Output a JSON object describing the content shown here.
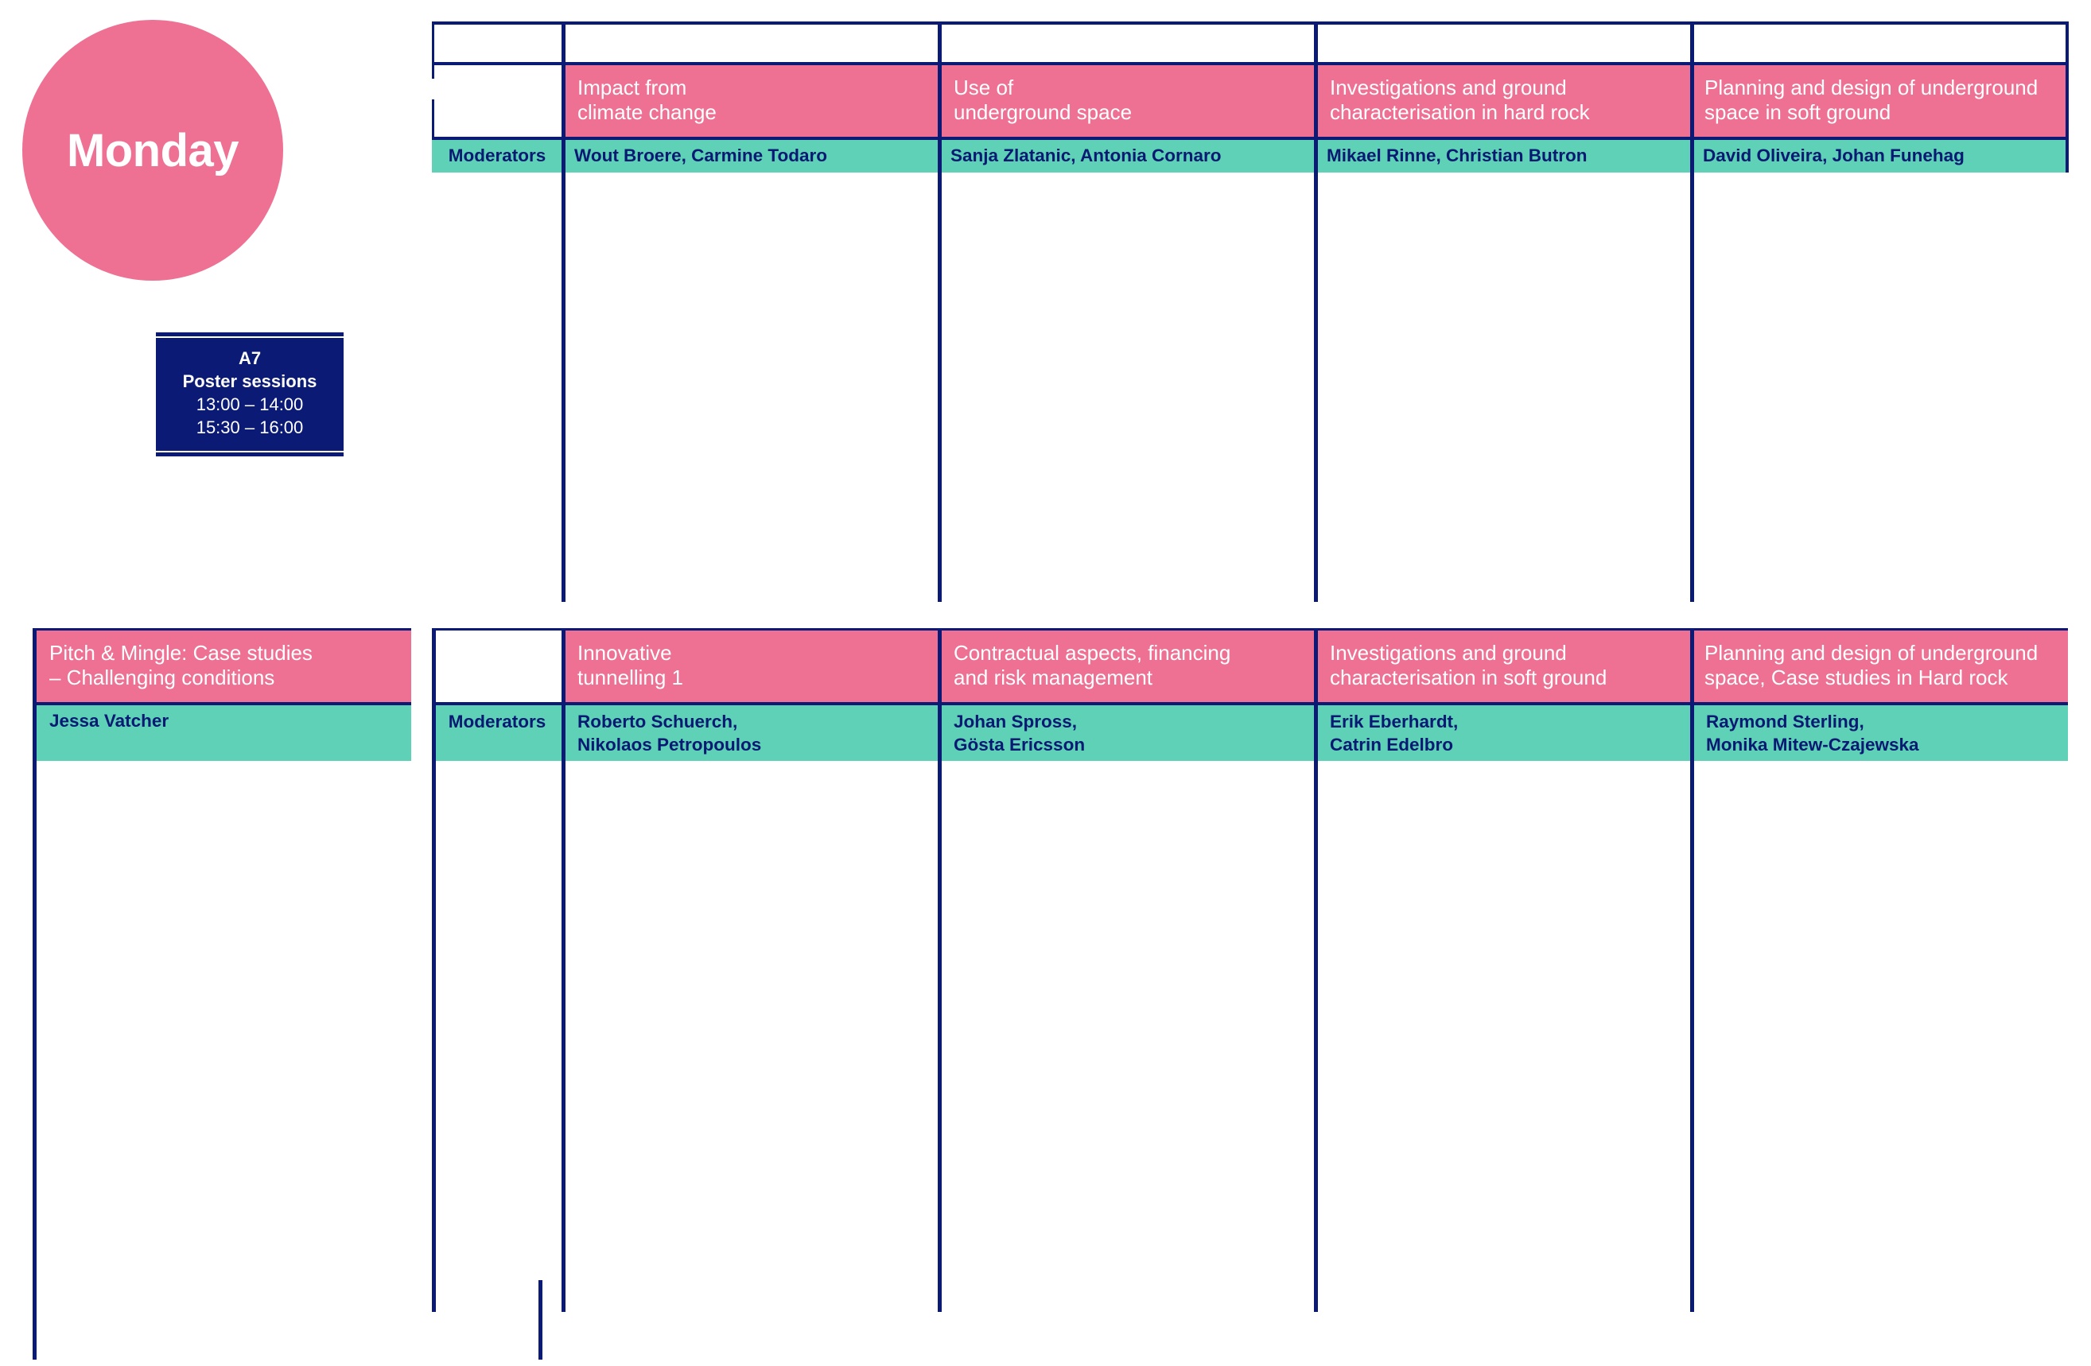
{
  "day": "Monday",
  "poster": {
    "room": "A7",
    "title": "Poster sessions",
    "times": [
      "13:00 – 14:00",
      "15:30 – 16:00"
    ]
  },
  "moderators_label": "Moderators",
  "top_sessions": [
    {
      "title_lines": [
        "Impact from",
        "climate change"
      ],
      "moderators": [
        "Wout Broere, Carmine Todaro"
      ]
    },
    {
      "title_lines": [
        "Use of",
        "underground space"
      ],
      "moderators": [
        "Sanja Zlatanic, Antonia Cornaro"
      ]
    },
    {
      "title_lines": [
        "Investigations and ground",
        "characterisation in hard rock"
      ],
      "moderators": [
        "Mikael Rinne, Christian Butron"
      ]
    },
    {
      "title_lines": [
        "Planning and design of underground",
        "space in soft ground"
      ],
      "moderators": [
        "David Oliveira, Johan Funehag"
      ]
    }
  ],
  "pitch": {
    "title_lines": [
      "Pitch & Mingle: Case studies",
      "– Challenging conditions"
    ],
    "moderator": "Jessa Vatcher"
  },
  "bottom_sessions": [
    {
      "title_lines": [
        "Innovative",
        "tunnelling 1"
      ],
      "moderators": [
        "Roberto Schuerch,",
        "Nikolaos Petropoulos"
      ]
    },
    {
      "title_lines": [
        "Contractual aspects, financing",
        "and risk management"
      ],
      "moderators": [
        "Johan Spross,",
        "Gösta Ericsson"
      ]
    },
    {
      "title_lines": [
        "Investigations and ground",
        "characterisation in soft ground"
      ],
      "moderators": [
        "Erik Eberhardt,",
        "Catrin Edelbro"
      ]
    },
    {
      "title_lines": [
        "Planning and design of underground",
        "space, Case studies in Hard rock"
      ],
      "moderators": [
        "Raymond Sterling,",
        "Monika Mitew-Czajewska"
      ]
    }
  ],
  "colors": {
    "navy": "#0a1a75",
    "pink": "#ee7193",
    "mint": "#5fd1b6"
  }
}
